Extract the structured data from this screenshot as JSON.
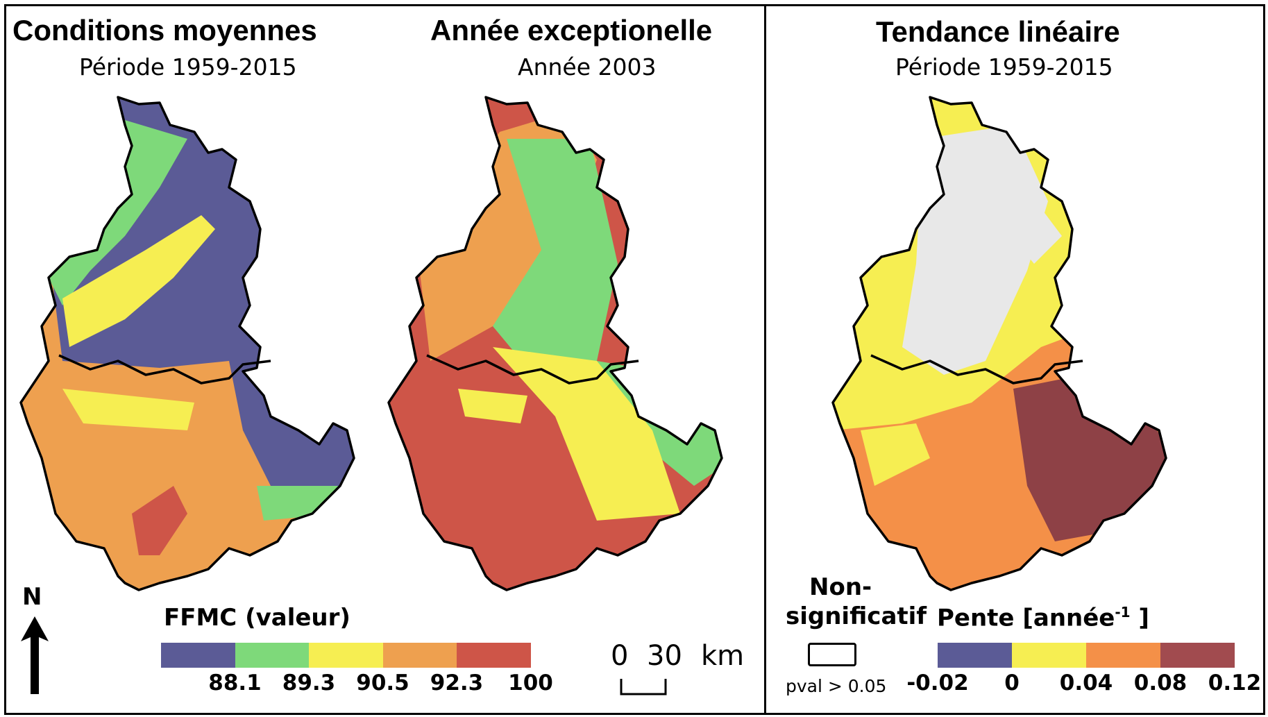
{
  "panels": {
    "mean": {
      "title": "Conditions moyennes",
      "subtitle": "Période 1959-2015"
    },
    "exceptional": {
      "title": "Année exceptionelle",
      "subtitle": "Année 2003"
    },
    "trend": {
      "title": "Tendance linéaire",
      "subtitle": "Période 1959-2015"
    }
  },
  "north_arrow": {
    "label": "N"
  },
  "scale_bar": {
    "start": "0",
    "end": "30",
    "unit": "km"
  },
  "ffmc_legend": {
    "title": "FFMC (valeur)",
    "classes": [
      {
        "color": "#5b5b96"
      },
      {
        "color": "#7ed97a"
      },
      {
        "color": "#f6ee52"
      },
      {
        "color": "#eea04f"
      },
      {
        "color": "#ce5548"
      }
    ],
    "breaks": [
      "88.1",
      "89.3",
      "90.5",
      "92.3",
      "100"
    ]
  },
  "nonsig_legend": {
    "title_line1": "Non-",
    "title_line2": "significatif",
    "note": "pval > 0.05"
  },
  "slope_legend": {
    "title_main": "Pente [année",
    "title_sup": "-1",
    "title_end": " ]",
    "classes": [
      {
        "color": "#5b5b96"
      },
      {
        "color": "#f6ee52"
      },
      {
        "color": "#f49048"
      },
      {
        "color": "#a14b4f"
      }
    ],
    "breaks": [
      "-0.02",
      "0",
      "0.04",
      "0.08",
      "0.12"
    ]
  },
  "map_colors": {
    "mean": {
      "north": "#5b5b96",
      "north_valleys": "#7ed97a",
      "mid": "#f6ee52",
      "south": "#eea04f",
      "hot": "#ce5548"
    },
    "exceptional": {
      "north": "#7ed97a",
      "north_valleys": "#eea04f",
      "mid": "#f6ee52",
      "south": "#ce5548"
    },
    "trend": {
      "north": "#f6ee52",
      "nonsig": "#e8e8e8",
      "south": "#f49048",
      "hot": "#8e4146"
    }
  }
}
